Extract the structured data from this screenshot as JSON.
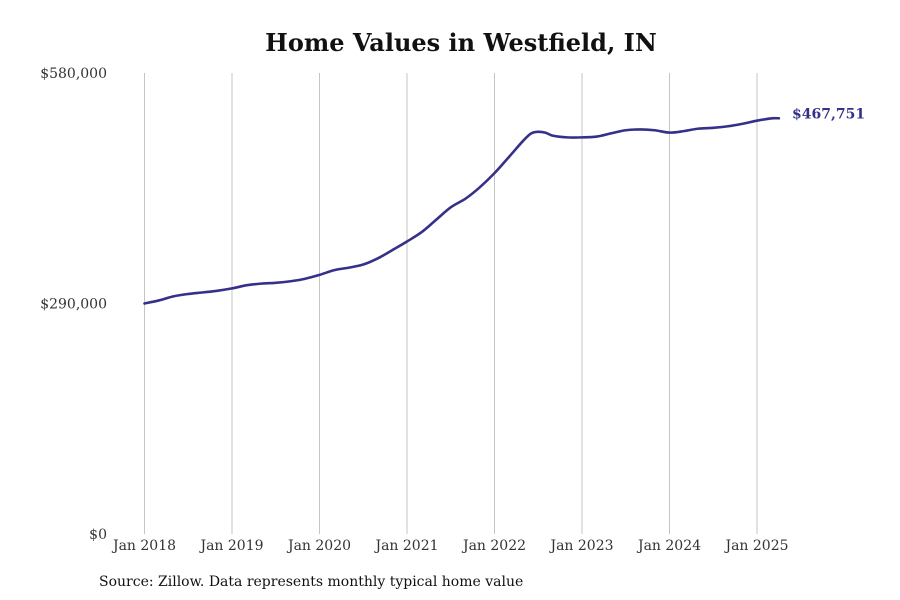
{
  "chart_data": {
    "type": "line",
    "title": "Home Values in Westfield, IN",
    "xlabel": "",
    "ylabel": "",
    "ylim": [
      0,
      580000
    ],
    "y_ticks": [
      0,
      290000,
      580000
    ],
    "y_tick_labels": [
      "$0",
      "$290,000",
      "$580,000"
    ],
    "x_ticks": [
      2018,
      2019,
      2020,
      2021,
      2022,
      2023,
      2024,
      2025
    ],
    "x_tick_labels": [
      "Jan 2018",
      "Jan 2019",
      "Jan 2020",
      "Jan 2021",
      "Jan 2022",
      "Jan 2023",
      "Jan 2024",
      "Jan 2025"
    ],
    "grid": "vertical",
    "series_color": "#35308a",
    "series": [
      {
        "name": "",
        "x": [
          2018.0,
          2018.17,
          2018.33,
          2018.5,
          2018.67,
          2018.83,
          2019.0,
          2019.17,
          2019.33,
          2019.5,
          2019.67,
          2019.83,
          2020.0,
          2020.17,
          2020.33,
          2020.5,
          2020.67,
          2020.83,
          2021.0,
          2021.17,
          2021.33,
          2021.5,
          2021.67,
          2021.83,
          2022.0,
          2022.17,
          2022.33,
          2022.42,
          2022.5,
          2022.58,
          2022.67,
          2022.83,
          2023.0,
          2023.17,
          2023.33,
          2023.5,
          2023.67,
          2023.83,
          2024.0,
          2024.17,
          2024.33,
          2024.5,
          2024.67,
          2024.83,
          2025.0,
          2025.17,
          2025.25
        ],
        "y": [
          290000,
          294000,
          299000,
          302000,
          304000,
          306000,
          309000,
          313000,
          315000,
          316000,
          318000,
          321000,
          326000,
          332000,
          335000,
          339000,
          347000,
          357000,
          368000,
          380000,
          395000,
          411000,
          422000,
          436000,
          454000,
          475000,
          495000,
          504000,
          506000,
          505000,
          501000,
          499000,
          499000,
          500000,
          504000,
          508000,
          509000,
          508000,
          505000,
          507000,
          510000,
          511000,
          513000,
          516000,
          520000,
          523000,
          523000
        ]
      }
    ],
    "annotations": [
      "$467,751"
    ]
  },
  "source_note": "Source: Zillow. Data represents monthly typical home value"
}
